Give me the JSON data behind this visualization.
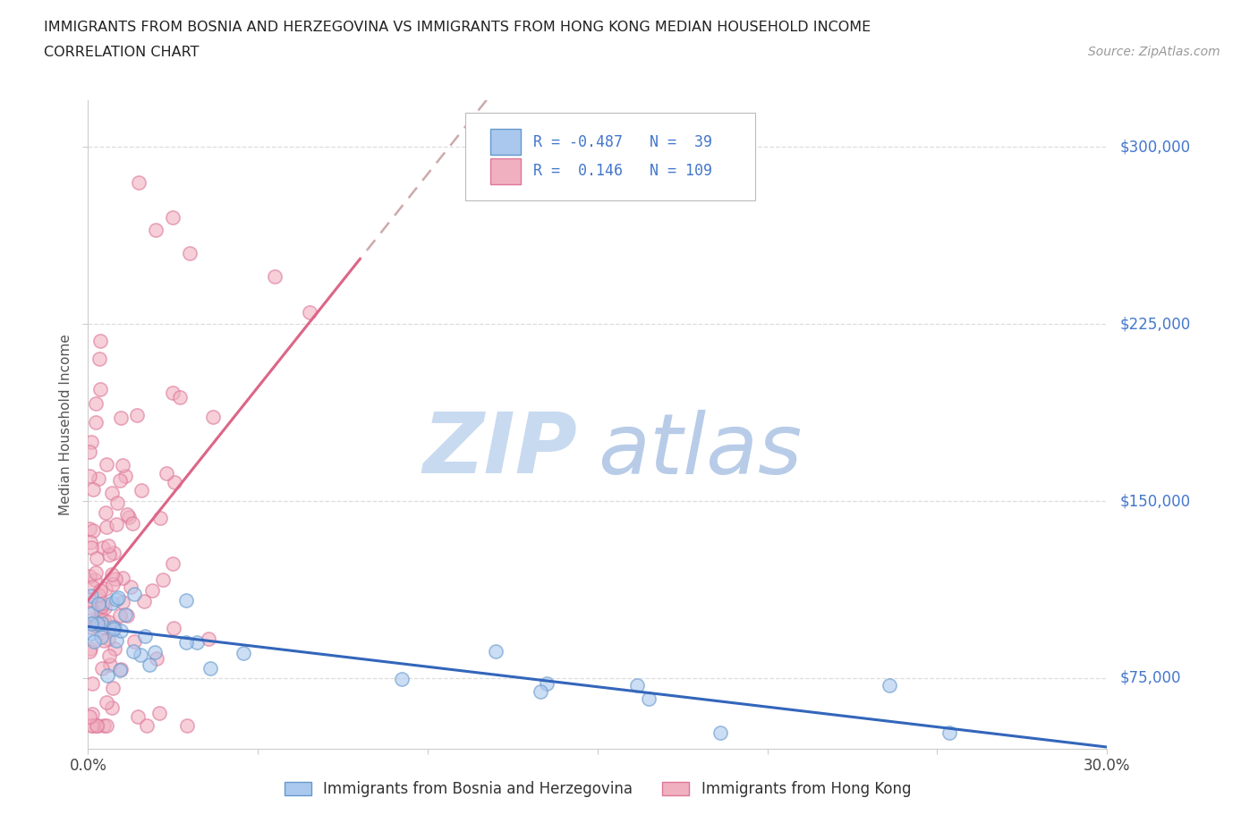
{
  "title_line1": "IMMIGRANTS FROM BOSNIA AND HERZEGOVINA VS IMMIGRANTS FROM HONG KONG MEDIAN HOUSEHOLD INCOME",
  "title_line2": "CORRELATION CHART",
  "source": "Source: ZipAtlas.com",
  "ylabel": "Median Household Income",
  "y_ticks": [
    75000,
    150000,
    225000,
    300000
  ],
  "y_tick_labels": [
    "$75,000",
    "$150,000",
    "$225,000",
    "$300,000"
  ],
  "x_min": 0.0,
  "x_max": 30.0,
  "y_min": 45000,
  "y_max": 320000,
  "bosnia_R": -0.487,
  "bosnia_N": 39,
  "hk_R": 0.146,
  "hk_N": 109,
  "bosnia_color": "#aac8ee",
  "hk_color": "#f0b0c0",
  "bosnia_edge": "#6699cc",
  "hk_edge": "#dd7799",
  "trend_bosnia_color": "#3366bb",
  "trend_hk_color": "#dd6688",
  "trend_hk_dashed_color": "#ccaaaa",
  "watermark_zip_color": "#c8daf0",
  "watermark_atlas_color": "#b8cce8",
  "legend_bosnia_label": "Immigrants from Bosnia and Herzegovina",
  "legend_hk_label": "Immigrants from Hong Kong",
  "grid_color": "#dddddd",
  "spine_color": "#cccccc",
  "tick_label_color": "#4477cc",
  "title_color": "#222222"
}
